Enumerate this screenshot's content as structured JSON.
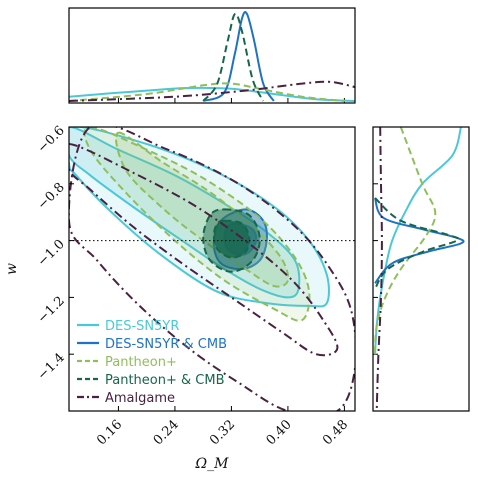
{
  "chart_data": {
    "type": "contour",
    "xlabel": "Ω_M",
    "ylabel": "w",
    "xlim": [
      0.09,
      0.495
    ],
    "ylim": [
      -1.6,
      -0.6
    ],
    "x_ticks": [
      0.16,
      0.24,
      0.32,
      0.4,
      0.48
    ],
    "x_tick_labels": [
      "0.16",
      "0.24",
      "0.32",
      "0.40",
      "0.48"
    ],
    "y_ticks": [
      -0.6,
      -0.8,
      -1.0,
      -1.2,
      -1.4
    ],
    "y_tick_labels": [
      "−0.6",
      "−0.8",
      "−1.0",
      "−1.2",
      "−1.4"
    ],
    "reference_line": {
      "w": -1.0,
      "style": "dotted"
    },
    "legend_position": "lower-left",
    "series": [
      {
        "name": "DES-SN5YR",
        "color": "#4bc8d8",
        "linestyle": "solid",
        "filled": true,
        "contour_inner": [
          [
            0.09,
            -0.6
          ],
          [
            0.16,
            -0.68
          ],
          [
            0.24,
            -0.77
          ],
          [
            0.31,
            -0.87
          ],
          [
            0.37,
            -0.97
          ],
          [
            0.41,
            -1.07
          ],
          [
            0.415,
            -1.17
          ],
          [
            0.4,
            -1.2
          ],
          [
            0.36,
            -1.17
          ],
          [
            0.31,
            -1.1
          ],
          [
            0.25,
            -1.0
          ],
          [
            0.18,
            -0.88
          ],
          [
            0.12,
            -0.77
          ],
          [
            0.09,
            -0.7
          ]
        ],
        "contour_outer": [
          [
            0.09,
            -0.6
          ],
          [
            0.2,
            -0.66
          ],
          [
            0.3,
            -0.76
          ],
          [
            0.38,
            -0.88
          ],
          [
            0.43,
            -1.0
          ],
          [
            0.455,
            -1.12
          ],
          [
            0.455,
            -1.22
          ],
          [
            0.43,
            -1.23
          ],
          [
            0.37,
            -1.22
          ],
          [
            0.3,
            -1.18
          ],
          [
            0.22,
            -1.05
          ],
          [
            0.15,
            -0.9
          ],
          [
            0.1,
            -0.77
          ],
          [
            0.09,
            -0.73
          ]
        ],
        "marginal_x": [
          [
            0.09,
            0.05
          ],
          [
            0.2,
            0.12
          ],
          [
            0.26,
            0.15
          ],
          [
            0.32,
            0.14
          ],
          [
            0.38,
            0.08
          ],
          [
            0.44,
            0.02
          ],
          [
            0.495,
            0.0
          ]
        ],
        "marginal_y": [
          [
            -0.6,
            1.0
          ],
          [
            -0.7,
            0.9
          ],
          [
            -0.8,
            0.55
          ],
          [
            -0.9,
            0.35
          ],
          [
            -1.0,
            0.2
          ],
          [
            -1.1,
            0.12
          ],
          [
            -1.2,
            0.06
          ],
          [
            -1.3,
            0.02
          ],
          [
            -1.4,
            0.0
          ]
        ]
      },
      {
        "name": "DES-SN5YR & CMB",
        "color": "#1f73c4",
        "linestyle": "solid",
        "filled": true,
        "contour_inner": [
          [
            0.33,
            -0.94
          ],
          [
            0.35,
            -0.96
          ],
          [
            0.355,
            -1.0
          ],
          [
            0.345,
            -1.04
          ],
          [
            0.33,
            -1.05
          ],
          [
            0.315,
            -1.03
          ],
          [
            0.31,
            -0.99
          ],
          [
            0.315,
            -0.95
          ]
        ],
        "contour_outer": [
          [
            0.34,
            -0.89
          ],
          [
            0.365,
            -0.93
          ],
          [
            0.37,
            -1.0
          ],
          [
            0.36,
            -1.07
          ],
          [
            0.335,
            -1.1
          ],
          [
            0.305,
            -1.08
          ],
          [
            0.295,
            -1.01
          ],
          [
            0.305,
            -0.93
          ]
        ],
        "marginal_x": [
          [
            0.28,
            0.0
          ],
          [
            0.31,
            0.1
          ],
          [
            0.325,
            0.55
          ],
          [
            0.335,
            0.95
          ],
          [
            0.342,
            1.0
          ],
          [
            0.352,
            0.7
          ],
          [
            0.365,
            0.2
          ],
          [
            0.38,
            0.0
          ]
        ],
        "marginal_y": [
          [
            -0.85,
            0.0
          ],
          [
            -0.92,
            0.1
          ],
          [
            -0.96,
            0.55
          ],
          [
            -0.99,
            0.95
          ],
          [
            -1.01,
            1.0
          ],
          [
            -1.04,
            0.6
          ],
          [
            -1.08,
            0.2
          ],
          [
            -1.15,
            0.0
          ]
        ]
      },
      {
        "name": "Pantheon+",
        "color": "#8fbf5b",
        "linestyle": "dashed",
        "filled": true,
        "contour_inner": [
          [
            0.16,
            -0.62
          ],
          [
            0.22,
            -0.72
          ],
          [
            0.29,
            -0.83
          ],
          [
            0.35,
            -0.95
          ],
          [
            0.39,
            -1.06
          ],
          [
            0.4,
            -1.14
          ],
          [
            0.38,
            -1.16
          ],
          [
            0.34,
            -1.1
          ],
          [
            0.28,
            -1.0
          ],
          [
            0.22,
            -0.88
          ],
          [
            0.17,
            -0.75
          ]
        ],
        "contour_outer": [
          [
            0.12,
            -0.6
          ],
          [
            0.2,
            -0.68
          ],
          [
            0.28,
            -0.78
          ],
          [
            0.36,
            -0.92
          ],
          [
            0.41,
            -1.06
          ],
          [
            0.43,
            -1.18
          ],
          [
            0.42,
            -1.28
          ],
          [
            0.38,
            -1.24
          ],
          [
            0.31,
            -1.14
          ],
          [
            0.24,
            -1.0
          ],
          [
            0.17,
            -0.83
          ],
          [
            0.12,
            -0.68
          ]
        ],
        "marginal_x": [
          [
            0.09,
            0.0
          ],
          [
            0.2,
            0.08
          ],
          [
            0.28,
            0.18
          ],
          [
            0.32,
            0.2
          ],
          [
            0.36,
            0.14
          ],
          [
            0.42,
            0.05
          ],
          [
            0.48,
            0.0
          ]
        ],
        "marginal_y": [
          [
            -0.6,
            0.3
          ],
          [
            -0.8,
            0.55
          ],
          [
            -0.9,
            0.7
          ],
          [
            -0.98,
            0.6
          ],
          [
            -1.1,
            0.3
          ],
          [
            -1.2,
            0.12
          ],
          [
            -1.3,
            0.02
          ],
          [
            -1.4,
            0.0
          ]
        ]
      },
      {
        "name": "Pantheon+ & CMB",
        "color": "#16664a",
        "linestyle": "dashed",
        "filled": true,
        "contour_inner": [
          [
            0.31,
            -0.93
          ],
          [
            0.335,
            -0.94
          ],
          [
            0.345,
            -0.99
          ],
          [
            0.34,
            -1.04
          ],
          [
            0.32,
            -1.06
          ],
          [
            0.3,
            -1.03
          ],
          [
            0.295,
            -0.98
          ],
          [
            0.3,
            -0.94
          ]
        ],
        "contour_outer": [
          [
            0.31,
            -0.89
          ],
          [
            0.345,
            -0.91
          ],
          [
            0.36,
            -0.99
          ],
          [
            0.35,
            -1.07
          ],
          [
            0.32,
            -1.11
          ],
          [
            0.29,
            -1.07
          ],
          [
            0.28,
            -0.99
          ],
          [
            0.29,
            -0.91
          ]
        ],
        "marginal_x": [
          [
            0.28,
            0.0
          ],
          [
            0.3,
            0.2
          ],
          [
            0.315,
            0.7
          ],
          [
            0.325,
            1.0
          ],
          [
            0.335,
            0.8
          ],
          [
            0.35,
            0.25
          ],
          [
            0.365,
            0.0
          ]
        ],
        "marginal_y": [
          [
            -0.85,
            0.0
          ],
          [
            -0.93,
            0.3
          ],
          [
            -0.98,
            0.85
          ],
          [
            -1.0,
            0.95
          ],
          [
            -1.04,
            0.55
          ],
          [
            -1.1,
            0.15
          ],
          [
            -1.17,
            0.0
          ]
        ]
      },
      {
        "name": "Amalgame",
        "color": "#4a2140",
        "linestyle": "dashdot",
        "filled": false,
        "contour_inner": [
          [
            0.09,
            -0.66
          ],
          [
            0.18,
            -0.76
          ],
          [
            0.27,
            -0.88
          ],
          [
            0.35,
            -1.02
          ],
          [
            0.41,
            -1.15
          ],
          [
            0.45,
            -1.28
          ],
          [
            0.47,
            -1.38
          ],
          [
            0.44,
            -1.4
          ],
          [
            0.39,
            -1.32
          ],
          [
            0.32,
            -1.2
          ],
          [
            0.25,
            -1.08
          ],
          [
            0.18,
            -0.95
          ],
          [
            0.12,
            -0.82
          ],
          [
            0.09,
            -0.75
          ]
        ],
        "contour_outer": [
          [
            0.12,
            -0.6
          ],
          [
            0.23,
            -0.68
          ],
          [
            0.33,
            -0.8
          ],
          [
            0.41,
            -0.95
          ],
          [
            0.46,
            -1.1
          ],
          [
            0.49,
            -1.25
          ],
          [
            0.495,
            -1.45
          ],
          [
            0.47,
            -1.6
          ],
          [
            0.4,
            -1.6
          ],
          [
            0.33,
            -1.5
          ],
          [
            0.26,
            -1.38
          ],
          [
            0.19,
            -1.23
          ],
          [
            0.13,
            -1.07
          ],
          [
            0.09,
            -0.93
          ]
        ],
        "marginal_x": [
          [
            0.09,
            0.0
          ],
          [
            0.24,
            0.05
          ],
          [
            0.34,
            0.12
          ],
          [
            0.42,
            0.2
          ],
          [
            0.46,
            0.22
          ],
          [
            0.495,
            0.16
          ]
        ],
        "marginal_y": [
          [
            -0.6,
            0.06
          ],
          [
            -0.8,
            0.07
          ],
          [
            -1.0,
            0.08
          ],
          [
            -1.2,
            0.07
          ],
          [
            -1.4,
            0.04
          ],
          [
            -1.6,
            0.02
          ]
        ]
      }
    ]
  }
}
